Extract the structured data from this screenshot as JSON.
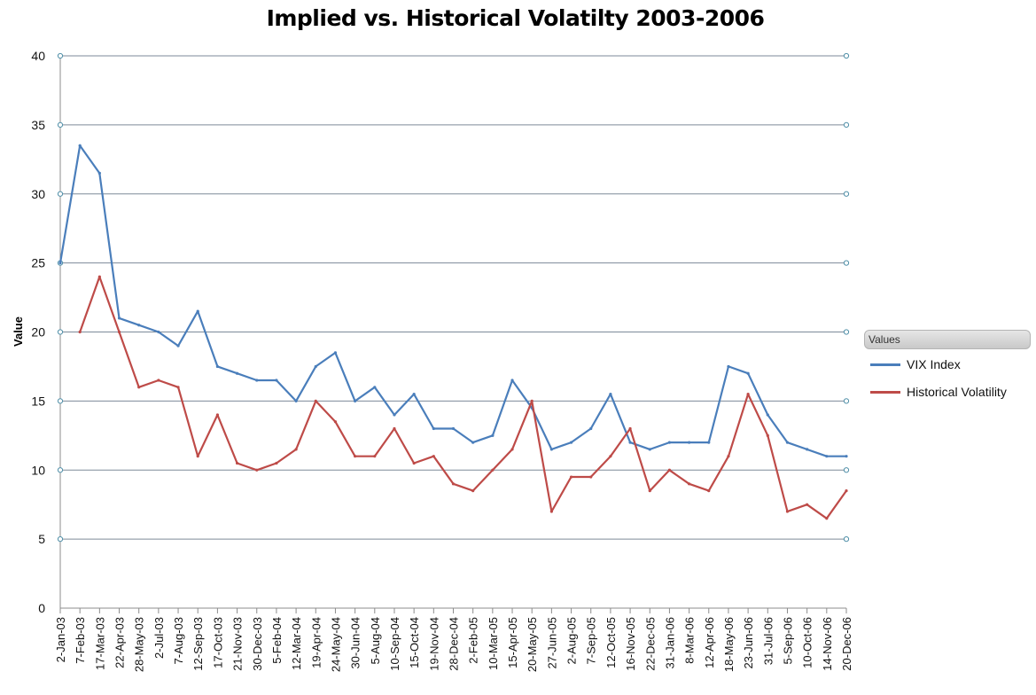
{
  "chart_data": {
    "type": "line",
    "title": "Implied vs. Historical Volatilty 2003-2006",
    "xlabel": "",
    "ylabel": "Value",
    "ylim": [
      0,
      40
    ],
    "yticks": [
      0,
      5,
      10,
      15,
      20,
      25,
      30,
      35,
      40
    ],
    "grid": true,
    "legend_title": "Values",
    "legend_position": "right",
    "x_tick_labels": [
      "2-Jan-03",
      "7-Feb-03",
      "17-Mar-03",
      "22-Apr-03",
      "28-May-03",
      "2-Jul-03",
      "7-Aug-03",
      "12-Sep-03",
      "17-Oct-03",
      "21-Nov-03",
      "30-Dec-03",
      "5-Feb-04",
      "12-Mar-04",
      "19-Apr-04",
      "24-May-04",
      "30-Jun-04",
      "5-Aug-04",
      "10-Sep-04",
      "15-Oct-04",
      "19-Nov-04",
      "28-Dec-04",
      "2-Feb-05",
      "10-Mar-05",
      "15-Apr-05",
      "20-May-05",
      "27-Jun-05",
      "2-Aug-05",
      "7-Sep-05",
      "12-Oct-05",
      "16-Nov-05",
      "22-Dec-05",
      "31-Jan-06",
      "8-Mar-06",
      "12-Apr-06",
      "18-May-06",
      "23-Jun-06",
      "31-Jul-06",
      "5-Sep-06",
      "10-Oct-06",
      "14-Nov-06",
      "20-Dec-06"
    ],
    "x": [
      "2-Jan-03",
      "7-Feb-03",
      "17-Mar-03",
      "22-Apr-03",
      "28-May-03",
      "2-Jul-03",
      "7-Aug-03",
      "12-Sep-03",
      "17-Oct-03",
      "21-Nov-03",
      "30-Dec-03",
      "5-Feb-04",
      "12-Mar-04",
      "19-Apr-04",
      "24-May-04",
      "30-Jun-04",
      "5-Aug-04",
      "10-Sep-04",
      "15-Oct-04",
      "19-Nov-04",
      "28-Dec-04",
      "2-Feb-05",
      "10-Mar-05",
      "15-Apr-05",
      "20-May-05",
      "27-Jun-05",
      "2-Aug-05",
      "7-Sep-05",
      "12-Oct-05",
      "16-Nov-05",
      "22-Dec-05",
      "31-Jan-06",
      "8-Mar-06",
      "12-Apr-06",
      "18-May-06",
      "23-Jun-06",
      "31-Jul-06",
      "5-Sep-06",
      "10-Oct-06",
      "14-Nov-06",
      "20-Dec-06"
    ],
    "series": [
      {
        "name": "VIX Index",
        "color": "#4a7ebb",
        "values": [
          25.0,
          33.5,
          31.5,
          21.0,
          20.5,
          20.0,
          19.0,
          21.5,
          17.5,
          17.0,
          16.5,
          16.5,
          15.0,
          17.5,
          18.5,
          15.0,
          16.0,
          14.0,
          15.5,
          13.0,
          13.0,
          12.0,
          12.5,
          16.5,
          14.5,
          11.5,
          12.0,
          13.0,
          15.5,
          12.0,
          11.5,
          12.0,
          12.0,
          12.0,
          17.5,
          17.0,
          14.0,
          12.0,
          11.5,
          11.0,
          11.0
        ]
      },
      {
        "name": "Historical Volatility",
        "color": "#be4b48",
        "values": [
          null,
          20.0,
          24.0,
          20.0,
          16.0,
          16.5,
          16.0,
          11.0,
          14.0,
          10.5,
          10.0,
          10.5,
          11.5,
          15.0,
          13.5,
          11.0,
          11.0,
          13.0,
          10.5,
          11.0,
          9.0,
          8.5,
          10.0,
          11.5,
          15.0,
          7.0,
          9.5,
          9.5,
          11.0,
          13.0,
          8.5,
          10.0,
          9.0,
          8.5,
          11.0,
          15.5,
          12.5,
          7.0,
          7.5,
          6.5,
          8.5
        ]
      }
    ]
  }
}
